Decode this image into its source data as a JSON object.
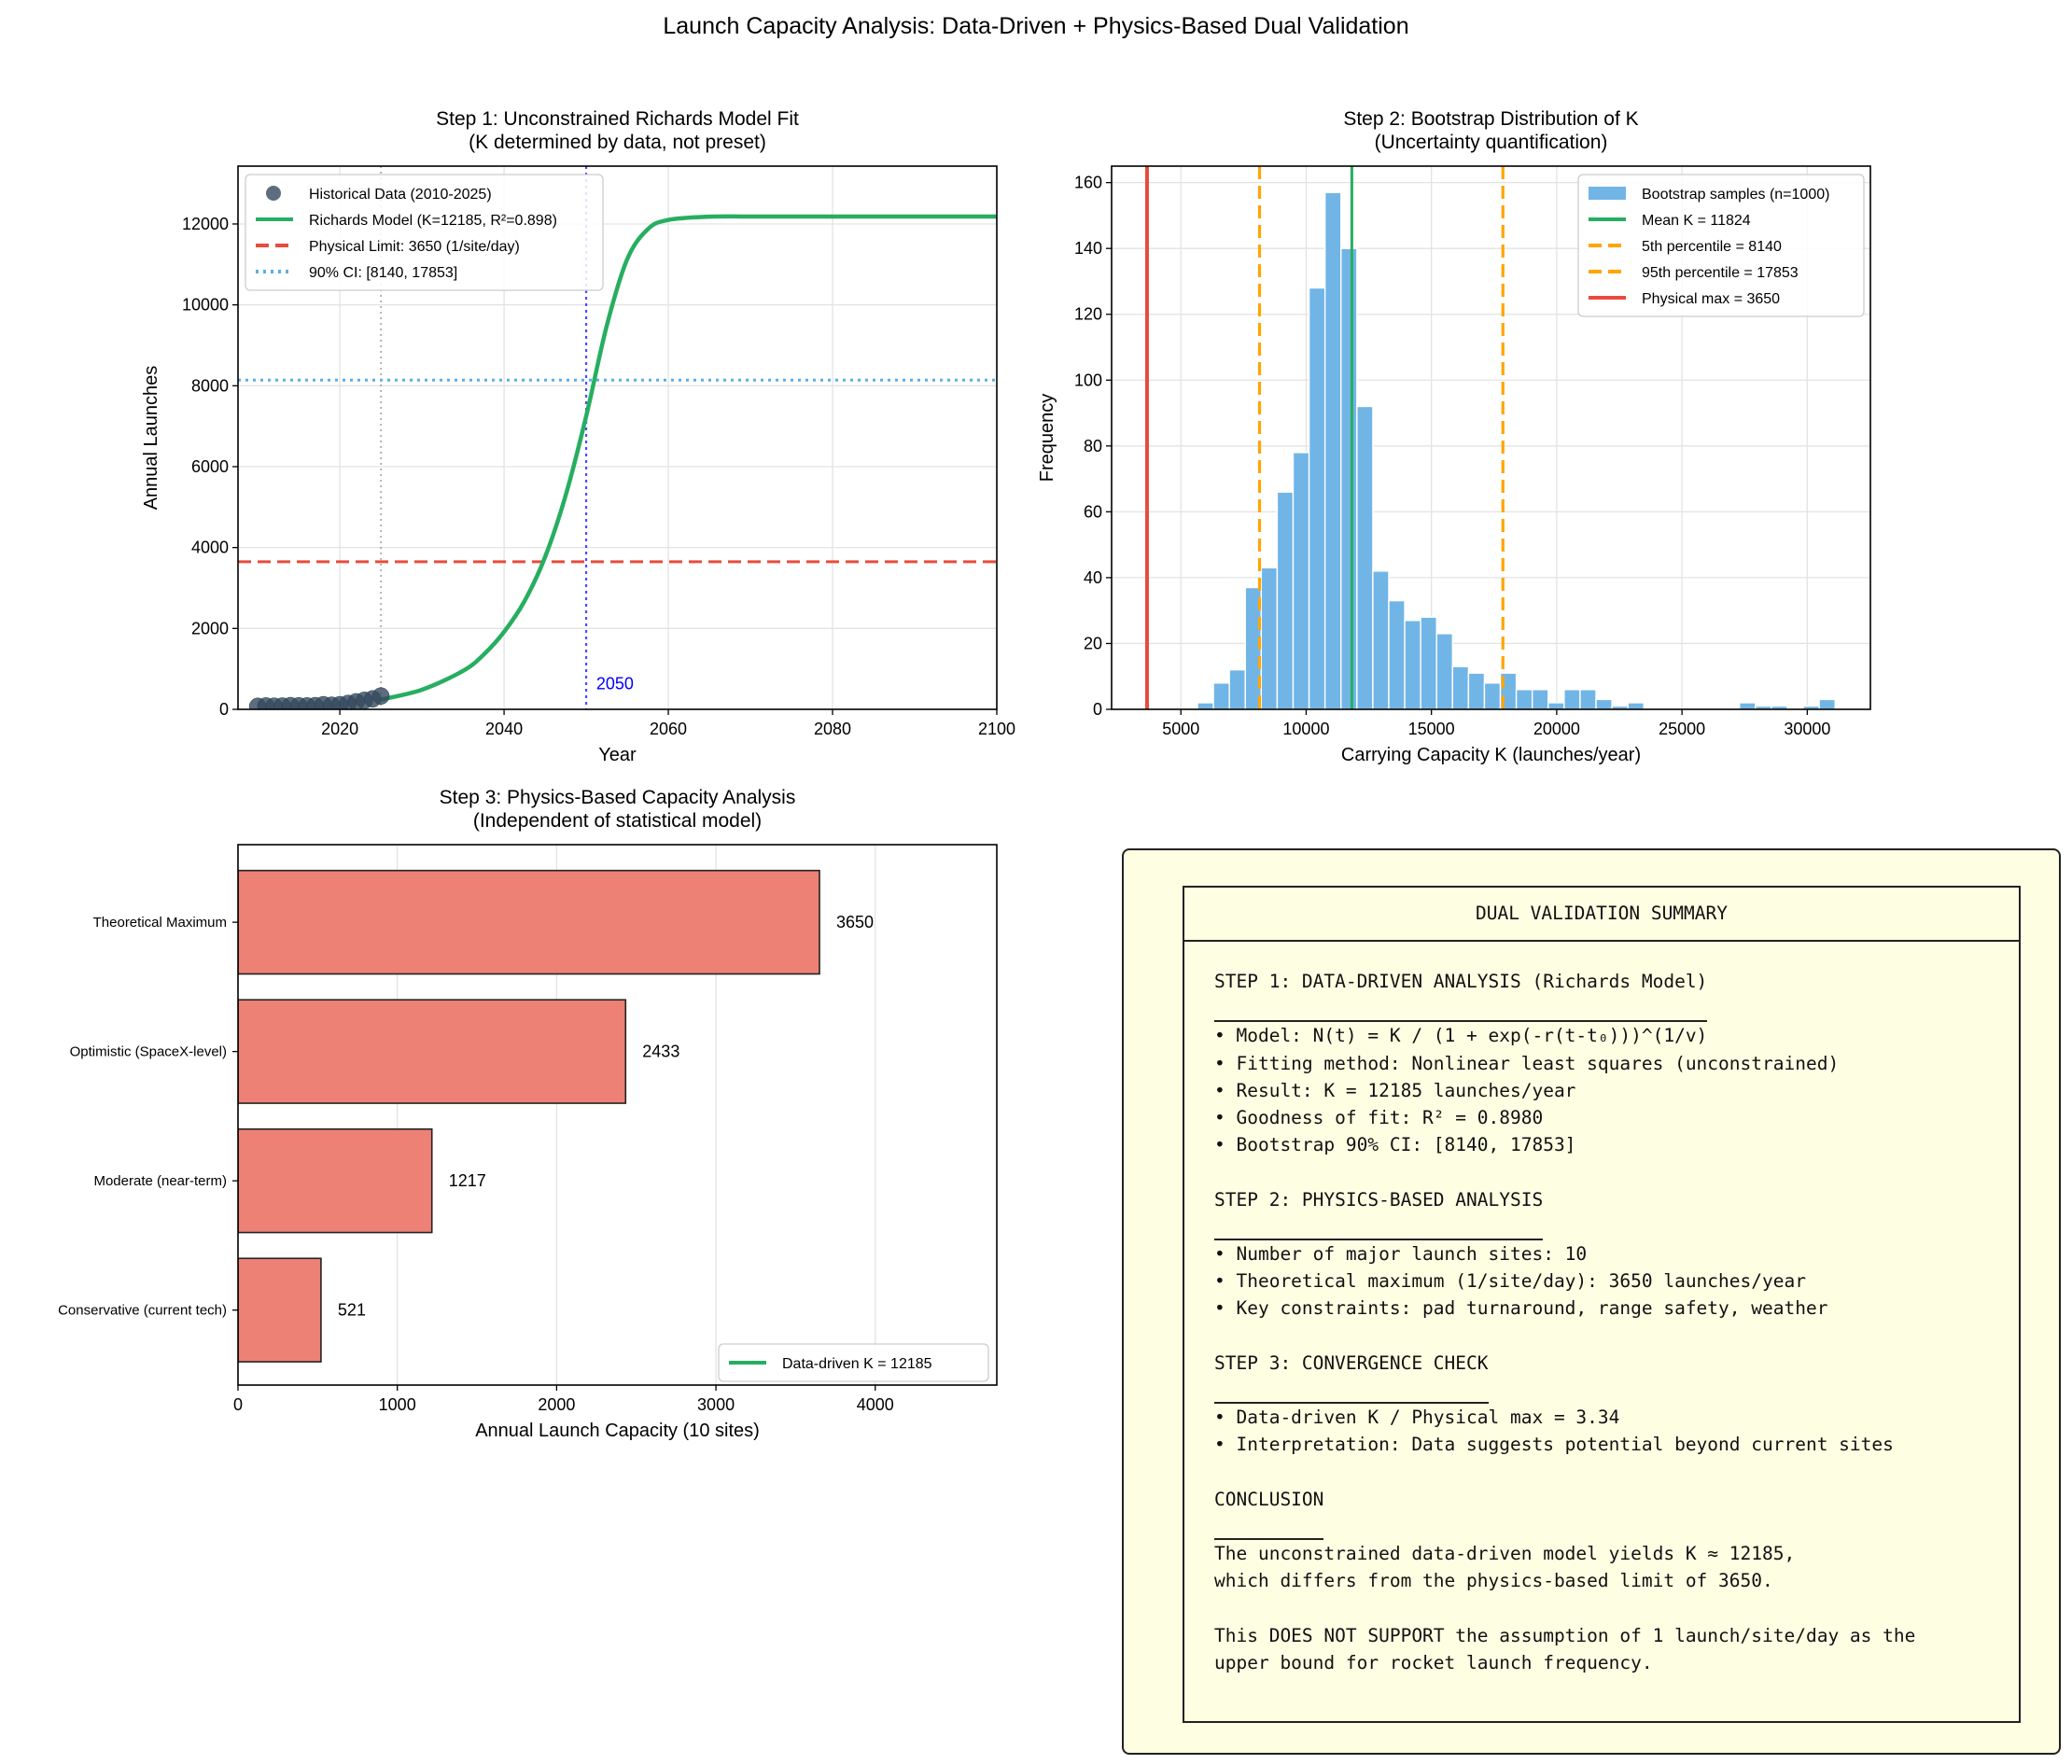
{
  "figure_title": "Launch Capacity Analysis: Data-Driven + Physics-Based Dual Validation",
  "chart_data": [
    {
      "type": "line",
      "title_lines": [
        "Step 1: Unconstrained Richards Model Fit",
        "(K determined by data, not preset)"
      ],
      "xlabel": "Year",
      "ylabel": "Annual Launches",
      "xlim": [
        2007.6,
        2100
      ],
      "ylim": [
        0,
        13430
      ],
      "xticks": [
        "2020",
        "2040",
        "2060",
        "2080",
        "2100"
      ],
      "yticks": [
        "0",
        "2000",
        "4000",
        "6000",
        "8000",
        "10000",
        "12000"
      ],
      "grid": true,
      "legend_position": "upper-left",
      "series": [
        {
          "name": "Historical Data (2010-2025)",
          "kind": "scatter",
          "color": "#34495e",
          "x": [
            2010,
            2011,
            2012,
            2013,
            2014,
            2015,
            2016,
            2017,
            2018,
            2019,
            2020,
            2021,
            2022,
            2023,
            2024,
            2025
          ],
          "y": [
            74,
            84,
            78,
            81,
            92,
            87,
            85,
            91,
            114,
            102,
            114,
            146,
            186,
            223,
            259,
            330
          ]
        },
        {
          "name": "Richards Model (K=12185, R²=0.898)",
          "kind": "line",
          "color": "#27ae60",
          "x": [
            2025,
            2030,
            2035,
            2037.5,
            2040,
            2042.5,
            2045,
            2047.5,
            2050,
            2052.5,
            2055,
            2057.5,
            2060,
            2065,
            2070,
            2080,
            2090,
            2100
          ],
          "y": [
            241,
            485,
            950,
            1350,
            1915,
            2680,
            3770,
            5290,
            7250,
            9480,
            11130,
            11870,
            12100,
            12180,
            12185,
            12185,
            12185,
            12185
          ]
        }
      ],
      "hlines": [
        {
          "name": "Physical Limit: 3650 (1/site/day)",
          "y": 3650,
          "color": "#e74c3c",
          "style": "dashed"
        },
        {
          "name": "90% CI: [8140, 17853]",
          "y": 8140,
          "color": "#5dade2",
          "style": "dotted"
        }
      ],
      "vlines": [
        {
          "x": 2025,
          "color": "#888888",
          "style": "dotted"
        },
        {
          "x": 2050,
          "color": "#2020ff",
          "style": "dotted"
        }
      ],
      "annotations": [
        {
          "text": "2050",
          "x": 2051,
          "y": 500,
          "color": "#0000ff"
        }
      ]
    },
    {
      "type": "bar",
      "title_lines": [
        "Step 2: Bootstrap Distribution of K",
        "(Uncertainty quantification)"
      ],
      "xlabel": "Carrying Capacity K (launches/year)",
      "ylabel": "Frequency",
      "xlim": [
        2235,
        32520
      ],
      "ylim": [
        0,
        165
      ],
      "xticks": [
        "5000",
        "10000",
        "15000",
        "20000",
        "25000",
        "30000"
      ],
      "yticks": [
        "0",
        "20",
        "40",
        "60",
        "80",
        "100",
        "120",
        "140",
        "160"
      ],
      "grid": true,
      "legend_position": "upper-right",
      "histogram": {
        "name": "Bootstrap samples (n=1000)",
        "color": "#71b5e6",
        "range": [
          5663,
          31112
        ],
        "counts": [
          2,
          8,
          12,
          37,
          43,
          66,
          78,
          128,
          157,
          140,
          92,
          42,
          33,
          27,
          28,
          23,
          13,
          11,
          8,
          11,
          6,
          6,
          2,
          6,
          6,
          3,
          1,
          2,
          0,
          0,
          0,
          0,
          0,
          0,
          2,
          1,
          1,
          0,
          1,
          3
        ]
      },
      "vlines": [
        {
          "name": "Mean K = 11824",
          "x": 11824,
          "color": "#27ae60",
          "style": "solid"
        },
        {
          "name": "5th percentile = 8140",
          "x": 8140,
          "color": "#ffa500",
          "style": "dashed"
        },
        {
          "name": "95th percentile = 17853",
          "x": 17853,
          "color": "#ffa500",
          "style": "dashed"
        },
        {
          "name": "Physical max = 3650",
          "x": 3650,
          "color": "#e74c3c",
          "style": "solid"
        }
      ]
    },
    {
      "type": "bar",
      "orientation": "horizontal",
      "title_lines": [
        "Step 3: Physics-Based Capacity Analysis",
        "(Independent of statistical model)"
      ],
      "xlabel": "Annual Launch Capacity (10 sites)",
      "xlim": [
        0,
        4763
      ],
      "xticks": [
        "0",
        "1000",
        "2000",
        "3000",
        "4000"
      ],
      "grid": true,
      "legend_position": "lower-right",
      "categories": [
        "Conservative (current tech)",
        "Moderate (near-term)",
        "Optimistic (SpaceX-level)",
        "Theoretical Maximum"
      ],
      "values": [
        521,
        1217,
        2433,
        3650
      ],
      "value_labels": [
        "521",
        "1217",
        "2433",
        "3650"
      ],
      "bar_color": "#ed8176",
      "legend_entries": [
        {
          "name": "Data-driven K = 12185",
          "color": "#27ae60",
          "style": "solid"
        }
      ]
    }
  ],
  "summary": {
    "title": "DUAL VALIDATION SUMMARY",
    "sections": [
      {
        "heading": "STEP 1: DATA-DRIVEN ANALYSIS (Richards Model)",
        "lines": [
          "• Model: N(t) = K / (1 + exp(-r(t-t₀)))^(1/v)",
          "• Fitting method: Nonlinear least squares (unconstrained)",
          "• Result: K = 12185 launches/year",
          "• Goodness of fit: R² = 0.8980",
          "• Bootstrap 90% CI: [8140, 17853]"
        ]
      },
      {
        "heading": "STEP 2: PHYSICS-BASED ANALYSIS",
        "lines": [
          "• Number of major launch sites: 10",
          "• Theoretical maximum (1/site/day): 3650 launches/year",
          "• Key constraints: pad turnaround, range safety, weather"
        ]
      },
      {
        "heading": "STEP 3: CONVERGENCE CHECK",
        "lines": [
          "• Data-driven K / Physical max = 3.34",
          "• Interpretation: Data suggests potential beyond current sites"
        ]
      },
      {
        "heading": "CONCLUSION",
        "lines": [
          "The unconstrained data-driven model yields K ≈ 12185,",
          "which differs from the physics-based limit of 3650.",
          "",
          "This DOES NOT SUPPORT the assumption of 1 launch/site/day as the",
          "upper bound for rocket launch frequency."
        ]
      }
    ]
  }
}
